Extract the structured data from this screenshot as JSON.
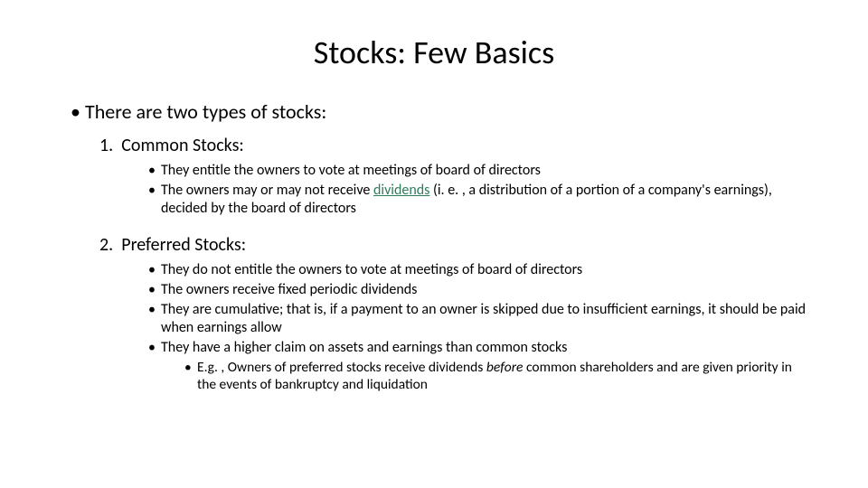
{
  "title": "Stocks: Few Basics",
  "intro": "There are two types of stocks:",
  "sections": {
    "common": {
      "number": "1.",
      "heading": "Common Stocks:",
      "points": {
        "p1": "They entitle the owners to vote at meetings of board of directors",
        "p2a": "The owners may or may not receive ",
        "p2_div": "dividends",
        "p2b": " (i. e. , a distribution of a portion of a company's earnings), decided by the board of directors"
      }
    },
    "preferred": {
      "number": "2.",
      "heading": "Preferred Stocks:",
      "points": {
        "p1": "They do not entitle the owners to vote at meetings of board of directors",
        "p2": "The owners receive fixed periodic dividends",
        "p3": "They are cumulative; that is, if a payment to an owner is skipped due to insufficient earnings, it should be paid when earnings allow",
        "p4": "They have a higher claim on assets and earnings than common stocks",
        "sub_a": "E.g. , Owners of preferred stocks receive dividends ",
        "sub_before": "before",
        "sub_b": " common shareholders and are given priority in the events of bankruptcy and liquidation"
      }
    }
  },
  "colors": {
    "text": "#000000",
    "dividends": "#2e7d5a",
    "background": "#ffffff"
  }
}
